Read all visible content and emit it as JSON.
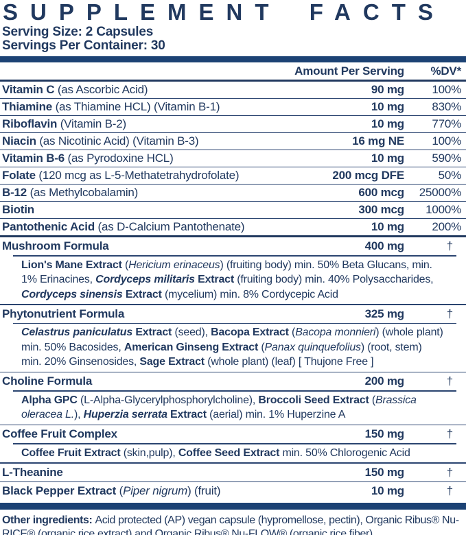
{
  "title": "SUPPLEMENT FACTS",
  "serving": {
    "size": "Serving Size: 2 Capsules",
    "per_container": "Servings Per Container: 30"
  },
  "columns": {
    "amount": "Amount Per Serving",
    "dv": "%DV*"
  },
  "colors": {
    "text_navy": "#21395f",
    "bar_navy": "#1c4274",
    "background": "#ffffff"
  },
  "nutrients": [
    {
      "name": [
        {
          "t": "Vitamin C ",
          "s": "b"
        },
        {
          "t": "(as Ascorbic Acid)",
          "s": "r"
        }
      ],
      "amount": "90 mg",
      "dv": "100%"
    },
    {
      "name": [
        {
          "t": "Thiamine ",
          "s": "b"
        },
        {
          "t": "(as Thiamine HCL) (Vitamin B-1)",
          "s": "r"
        }
      ],
      "amount": "10 mg",
      "dv": "830%"
    },
    {
      "name": [
        {
          "t": "Riboflavin ",
          "s": "b"
        },
        {
          "t": "(Vitamin B-2)",
          "s": "r"
        }
      ],
      "amount": "10 mg",
      "dv": "770%"
    },
    {
      "name": [
        {
          "t": "Niacin ",
          "s": "b"
        },
        {
          "t": "(as Nicotinic Acid) (Vitamin B-3)",
          "s": "r"
        }
      ],
      "amount": "16 mg NE",
      "dv": "100%"
    },
    {
      "name": [
        {
          "t": "Vitamin B-6 ",
          "s": "b"
        },
        {
          "t": "(as Pyrodoxine HCL)",
          "s": "r"
        }
      ],
      "amount": "10 mg",
      "dv": "590%"
    },
    {
      "name": [
        {
          "t": "Folate ",
          "s": "b"
        },
        {
          "t": "(120 mcg as L-5-Methatetrahydrofolate)",
          "s": "r"
        }
      ],
      "amount": "200 mcg DFE",
      "dv": "50%"
    },
    {
      "name": [
        {
          "t": "B-12 ",
          "s": "b"
        },
        {
          "t": "(as Methylcobalamin)",
          "s": "r"
        }
      ],
      "amount": "600 mcg",
      "dv": "25000%"
    },
    {
      "name": [
        {
          "t": "Biotin",
          "s": "b"
        }
      ],
      "amount": "300 mcg",
      "dv": "1000%"
    },
    {
      "name": [
        {
          "t": "Pantothenic Acid ",
          "s": "b"
        },
        {
          "t": "(as D-Calcium Pantothenate)",
          "s": "r"
        }
      ],
      "amount": "10 mg",
      "dv": "200%"
    }
  ],
  "formulas": [
    {
      "name": [
        {
          "t": "Mushroom Formula",
          "s": "b"
        }
      ],
      "amount": "400 mg",
      "dv": "†",
      "desc": [
        {
          "t": "Lion's Mane Extract ",
          "s": "b"
        },
        {
          "t": "(",
          "s": "r"
        },
        {
          "t": "Hericium erinaceus",
          "s": "i"
        },
        {
          "t": ") (fruiting body) min. 50% Beta Glucans, min.\n1% Erinacines, ",
          "s": "r"
        },
        {
          "t": "Cordyceps militaris ",
          "s": "bi"
        },
        {
          "t": "Extract ",
          "s": "b"
        },
        {
          "t": "(fruiting body) min. 40% Polysaccharides,\n",
          "s": "r"
        },
        {
          "t": "Cordyceps sinensis ",
          "s": "bi"
        },
        {
          "t": "Extract ",
          "s": "b"
        },
        {
          "t": "(mycelium) min. 8% Cordycepic Acid",
          "s": "r"
        }
      ]
    },
    {
      "name": [
        {
          "t": "Phytonutrient Formula",
          "s": "b"
        }
      ],
      "amount": "325 mg",
      "dv": "†",
      "desc": [
        {
          "t": "Celastrus paniculatus ",
          "s": "bi"
        },
        {
          "t": "Extract ",
          "s": "b"
        },
        {
          "t": "(seed), ",
          "s": "r"
        },
        {
          "t": "Bacopa Extract ",
          "s": "b"
        },
        {
          "t": "(",
          "s": "r"
        },
        {
          "t": "Bacopa monnieri",
          "s": "i"
        },
        {
          "t": ") (whole plant)\nmin. 50% Bacosides, ",
          "s": "r"
        },
        {
          "t": "American Ginseng Extract ",
          "s": "b"
        },
        {
          "t": "(",
          "s": "r"
        },
        {
          "t": "Panax quinquefolius",
          "s": "i"
        },
        {
          "t": ") (root, stem)\nmin. 20% Ginsenosides, ",
          "s": "r"
        },
        {
          "t": "Sage Extract ",
          "s": "b"
        },
        {
          "t": "(whole plant) (leaf) [ Thujone Free ]",
          "s": "r"
        }
      ]
    },
    {
      "name": [
        {
          "t": "Choline Formula",
          "s": "b"
        }
      ],
      "amount": "200 mg",
      "dv": "†",
      "desc": [
        {
          "t": "Alpha GPC ",
          "s": "b"
        },
        {
          "t": "(L-Alpha-Glycerylphosphorylcholine), ",
          "s": "r"
        },
        {
          "t": "Broccoli Seed Extract ",
          "s": "b"
        },
        {
          "t": "(",
          "s": "r"
        },
        {
          "t": "Brassica\noleracea L.",
          "s": "i"
        },
        {
          "t": "), ",
          "s": "r"
        },
        {
          "t": "Huperzia serrata ",
          "s": "bi"
        },
        {
          "t": "Extract ",
          "s": "b"
        },
        {
          "t": "(aerial) min. 1% Huperzine A",
          "s": "r"
        }
      ]
    },
    {
      "name": [
        {
          "t": "Coffee Fruit Complex",
          "s": "b"
        }
      ],
      "amount": "150 mg",
      "dv": "†",
      "desc": [
        {
          "t": "Coffee Fruit Extract ",
          "s": "b"
        },
        {
          "t": "(skin,pulp), ",
          "s": "r"
        },
        {
          "t": "Coffee Seed Extract ",
          "s": "b"
        },
        {
          "t": "min. 50% Chlorogenic Acid",
          "s": "r"
        }
      ]
    },
    {
      "name": [
        {
          "t": "L-Theanine",
          "s": "b"
        }
      ],
      "amount": "150 mg",
      "dv": "†"
    },
    {
      "name": [
        {
          "t": "Black Pepper Extract ",
          "s": "b"
        },
        {
          "t": "(",
          "s": "r"
        },
        {
          "t": "Piper nigrum",
          "s": "i"
        },
        {
          "t": ") (fruit)",
          "s": "r"
        }
      ],
      "amount": "10 mg",
      "dv": "†"
    }
  ],
  "footnote": [
    {
      "t": "Other ingredients: ",
      "s": "b"
    },
    {
      "t": "Acid protected (AP) vegan capsule (hypromellose, pectin), Organic Ribus® Nu-\nRICE® (organic rice extract) and Organic Ribus® Nu-FLOW® (organic rice fiber).",
      "s": "r"
    }
  ]
}
